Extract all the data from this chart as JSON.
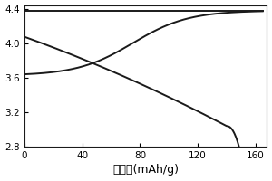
{
  "title": "",
  "xlabel": "比容量(mAh/g)",
  "ylabel": "",
  "xlim": [
    0,
    168
  ],
  "ylim": [
    2.8,
    4.45
  ],
  "xticks": [
    0,
    40,
    80,
    120,
    160
  ],
  "yticks": [
    2.8,
    3.2,
    3.6,
    4.0,
    4.4
  ],
  "bg_color": "#ffffff",
  "line_color": "#1a1a1a",
  "line_width": 1.4,
  "figsize": [
    3.0,
    2.0
  ],
  "dpi": 100,
  "xlabel_fontsize": 9,
  "tick_fontsize": 7.5
}
